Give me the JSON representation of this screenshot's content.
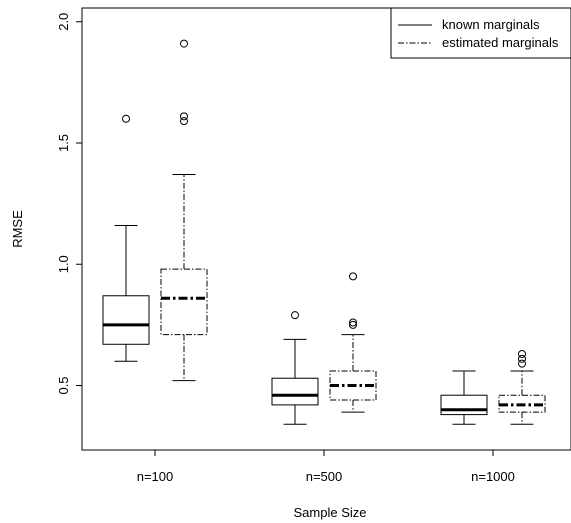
{
  "chart_data": {
    "type": "boxplot",
    "title": "",
    "xlabel": "Sample Size",
    "ylabel": "RMSE",
    "categories": [
      "n=100",
      "n=500",
      "n=1000"
    ],
    "ylim": [
      0.25,
      2.05
    ],
    "yticks": [
      0.5,
      1.0,
      1.5,
      2.0
    ],
    "ytick_labels": [
      "0.5",
      "1.0",
      "1.5",
      "2.0"
    ],
    "grid": false,
    "legend_position": "top-right",
    "series": [
      {
        "name": "known marginals",
        "line_style": "solid",
        "boxes": [
          {
            "category": "n=100",
            "whisker_low": 0.6,
            "q1": 0.67,
            "median": 0.75,
            "q3": 0.87,
            "whisker_high": 1.16,
            "outliers": [
              1.6
            ]
          },
          {
            "category": "n=500",
            "whisker_low": 0.34,
            "q1": 0.42,
            "median": 0.46,
            "q3": 0.53,
            "whisker_high": 0.69,
            "outliers": [
              0.79
            ]
          },
          {
            "category": "n=1000",
            "whisker_low": 0.34,
            "q1": 0.38,
            "median": 0.4,
            "q3": 0.46,
            "whisker_high": 0.56,
            "outliers": []
          }
        ]
      },
      {
        "name": "estimated marginals",
        "line_style": "dash-dot",
        "boxes": [
          {
            "category": "n=100",
            "whisker_low": 0.52,
            "q1": 0.71,
            "median": 0.86,
            "q3": 0.98,
            "whisker_high": 1.37,
            "outliers": [
              1.59,
              1.61,
              1.91
            ]
          },
          {
            "category": "n=500",
            "whisker_low": 0.39,
            "q1": 0.44,
            "median": 0.5,
            "q3": 0.56,
            "whisker_high": 0.71,
            "outliers": [
              0.75,
              0.76,
              0.95
            ]
          },
          {
            "category": "n=1000",
            "whisker_low": 0.34,
            "q1": 0.39,
            "median": 0.42,
            "q3": 0.46,
            "whisker_high": 0.56,
            "outliers": [
              0.59,
              0.61,
              0.63
            ]
          }
        ]
      }
    ]
  }
}
